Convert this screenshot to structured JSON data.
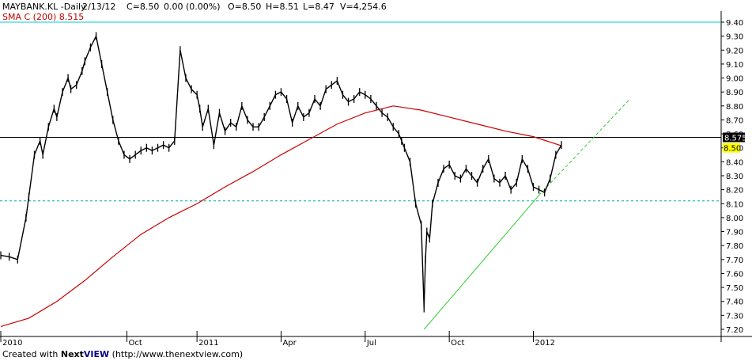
{
  "header": {
    "symbol": "MAYBANK.KL -Daily",
    "date": "2/13/12",
    "close": "C=8.50",
    "change": "0.00 (0.00%)",
    "open": "O=8.50",
    "high": "H=8.51",
    "low": "L=8.47",
    "volume": "V=4,254.6"
  },
  "sma_label": "SMA C (200) 8.515",
  "footer": {
    "prefix": "Created with",
    "brand_next": "Next",
    "brand_view": "VIEW",
    "url": "(http://www.thenextview.com)"
  },
  "colors": {
    "price": "#000000",
    "sma": "#cc0000",
    "trendline": "#33cc33",
    "top_line": "#00cccc",
    "support": "#00aaaa",
    "highlight": "#ffff00"
  },
  "chart_data": {
    "type": "line",
    "title": "MAYBANK.KL -Daily",
    "yscale": {
      "min": 7.2,
      "max": 9.4
    },
    "y_ticks": [
      "9.40",
      "9.30",
      "9.20",
      "9.10",
      "9.00",
      "8.90",
      "8.80",
      "8.70",
      "8.60",
      "8.50",
      "8.40",
      "8.30",
      "8.20",
      "8.10",
      "8.00",
      "7.90",
      "7.80",
      "7.70",
      "7.60",
      "7.50",
      "7.40",
      "7.30",
      "7.20"
    ],
    "x_labels": [
      "2010",
      "Oct",
      "2011",
      "Apr",
      "Jul",
      "Oct",
      "2012"
    ],
    "x_label_months": [
      0,
      4.5,
      7,
      10,
      13,
      16,
      19
    ],
    "x_range_months": [
      0,
      25.7
    ],
    "last_price_label": "8.575",
    "last_close_label": "8.50",
    "reference_levels": {
      "top_line": 9.4,
      "horizontal_line": 8.575,
      "dashed_support": 8.12
    },
    "trendline": {
      "solid": [
        [
          15.1,
          7.2
        ],
        [
          19.2,
          8.16
        ]
      ],
      "dashed": [
        [
          19.2,
          8.16
        ],
        [
          22.4,
          8.84
        ]
      ]
    },
    "series": [
      {
        "name": "Price",
        "x": [
          0,
          0.3,
          0.6,
          0.9,
          1.0,
          1.2,
          1.4,
          1.5,
          1.7,
          1.9,
          2.0,
          2.2,
          2.4,
          2.5,
          2.7,
          2.9,
          3.0,
          3.2,
          3.4,
          3.6,
          3.8,
          4.0,
          4.2,
          4.4,
          4.6,
          4.8,
          5.0,
          5.2,
          5.4,
          5.6,
          5.8,
          6.0,
          6.2,
          6.4,
          6.6,
          6.8,
          7.0,
          7.1,
          7.2,
          7.4,
          7.6,
          7.8,
          8.0,
          8.2,
          8.4,
          8.6,
          8.8,
          9.0,
          9.2,
          9.4,
          9.6,
          9.8,
          10.0,
          10.2,
          10.4,
          10.6,
          10.8,
          11.0,
          11.2,
          11.4,
          11.6,
          11.8,
          12.0,
          12.2,
          12.4,
          12.6,
          12.8,
          13.0,
          13.2,
          13.4,
          13.6,
          13.8,
          14.0,
          14.2,
          14.3,
          14.4,
          14.6,
          14.8,
          15.0,
          15.1,
          15.15,
          15.2,
          15.3,
          15.4,
          15.6,
          15.8,
          16.0,
          16.2,
          16.4,
          16.6,
          16.8,
          17.0,
          17.2,
          17.4,
          17.6,
          17.8,
          18.0,
          18.2,
          18.4,
          18.6,
          18.8,
          19.0,
          19.2,
          19.4,
          19.6,
          19.8,
          20.0
        ],
        "values": [
          7.73,
          7.72,
          7.7,
          8.0,
          8.15,
          8.45,
          8.55,
          8.45,
          8.65,
          8.78,
          8.72,
          8.9,
          9.0,
          8.92,
          8.95,
          9.05,
          9.12,
          9.22,
          9.3,
          9.1,
          8.9,
          8.7,
          8.55,
          8.45,
          8.42,
          8.45,
          8.48,
          8.5,
          8.48,
          8.5,
          8.52,
          8.5,
          8.55,
          9.2,
          9.0,
          8.92,
          8.88,
          8.78,
          8.65,
          8.78,
          8.52,
          8.75,
          8.62,
          8.68,
          8.65,
          8.8,
          8.7,
          8.65,
          8.65,
          8.72,
          8.8,
          8.88,
          8.9,
          8.85,
          8.68,
          8.8,
          8.72,
          8.75,
          8.85,
          8.8,
          8.92,
          8.95,
          8.98,
          8.88,
          8.83,
          8.85,
          8.9,
          8.88,
          8.85,
          8.8,
          8.75,
          8.72,
          8.65,
          8.6,
          8.55,
          8.5,
          8.4,
          8.1,
          7.95,
          7.35,
          7.7,
          7.9,
          7.85,
          8.1,
          8.25,
          8.35,
          8.38,
          8.3,
          8.28,
          8.35,
          8.3,
          8.25,
          8.35,
          8.42,
          8.28,
          8.25,
          8.3,
          8.2,
          8.25,
          8.42,
          8.35,
          8.22,
          8.2,
          8.18,
          8.28,
          8.45,
          8.52
        ]
      },
      {
        "name": "SMA C (200)",
        "x": [
          0,
          1,
          2,
          3,
          4,
          5,
          6,
          7,
          8,
          9,
          10,
          11,
          12,
          13,
          14,
          15,
          16,
          17,
          18,
          19,
          20
        ],
        "values": [
          7.22,
          7.28,
          7.4,
          7.55,
          7.72,
          7.88,
          8.0,
          8.1,
          8.22,
          8.33,
          8.45,
          8.56,
          8.67,
          8.75,
          8.8,
          8.77,
          8.72,
          8.67,
          8.62,
          8.58,
          8.515
        ]
      }
    ]
  }
}
